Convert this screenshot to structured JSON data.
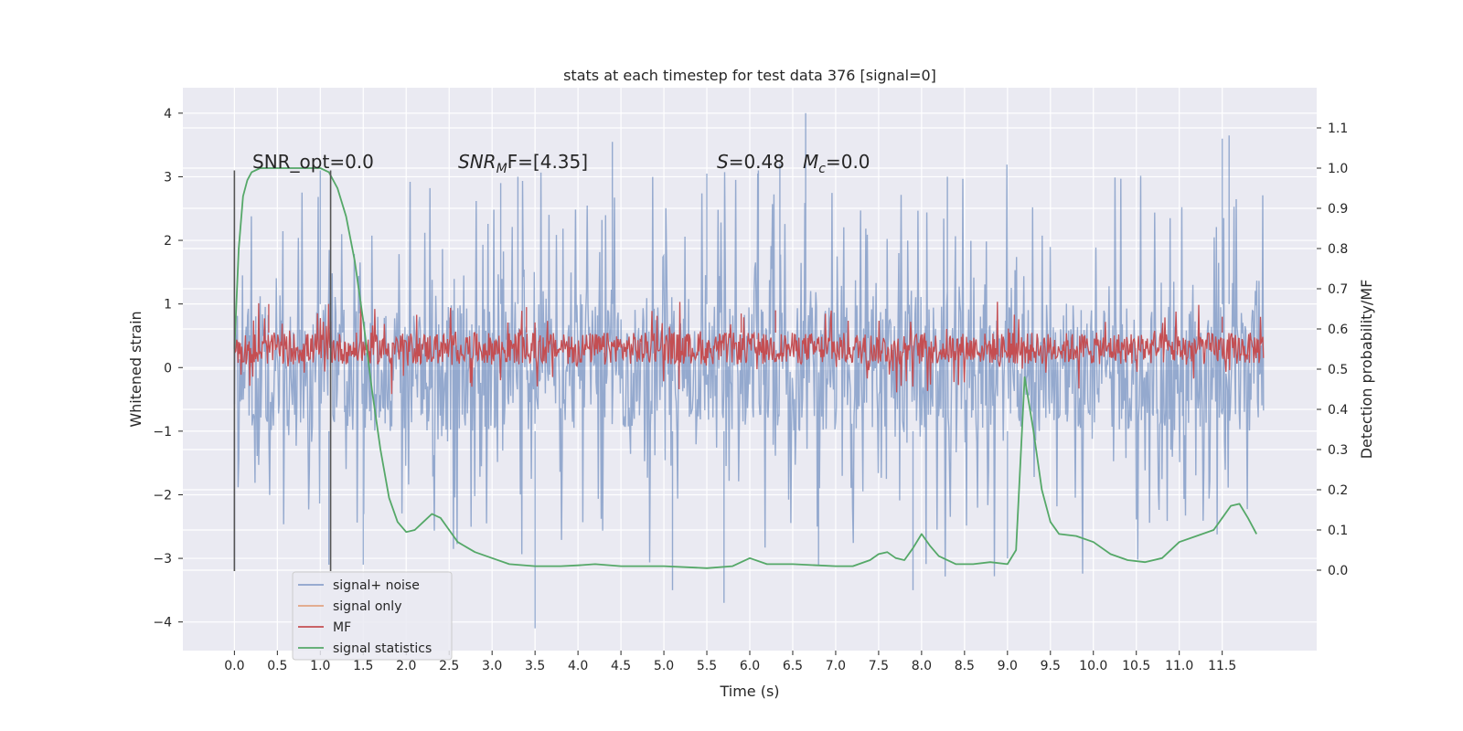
{
  "chart_data": {
    "type": "line",
    "title": "stats at each timestep for test data 376 [signal=0]",
    "xlabel": "Time (s)",
    "ylabel_left": "Whitened strain",
    "ylabel_right": "Detection probability/MF",
    "xlim": [
      -0.6,
      12.6
    ],
    "ylim_left": [
      -4.45,
      4.4
    ],
    "ylim_right": [
      -0.2,
      1.2
    ],
    "x_ticks": [
      "0.0",
      "0.5",
      "1.0",
      "1.5",
      "2.0",
      "2.5",
      "3.0",
      "3.5",
      "4.0",
      "4.5",
      "5.0",
      "5.5",
      "6.0",
      "6.5",
      "7.0",
      "7.5",
      "8.0",
      "8.5",
      "9.0",
      "9.5",
      "10.0",
      "10.5",
      "11.0",
      "11.5"
    ],
    "y_left_ticks": [
      "4",
      "3",
      "2",
      "1",
      "0",
      "−1",
      "−2",
      "−3",
      "−4"
    ],
    "y_right_ticks": [
      "1.1",
      "1.0",
      "0.9",
      "0.8",
      "0.7",
      "0.6",
      "0.5",
      "0.4",
      "0.3",
      "0.2",
      "0.1",
      "0.0"
    ],
    "grid": true,
    "legend_position": "lower-left",
    "annotations": {
      "snr_opt": "SNR_opt=0.0",
      "snr_mf_sym": "SNR",
      "snr_mf_sub": "M",
      "snr_mf_rest": "F=[4.35]",
      "s_sym": "S",
      "s_val": "=0.48",
      "mc_sym": "M",
      "mc_sub": "c",
      "mc_val": "=0.0"
    },
    "vlines": [
      0.0,
      1.12
    ],
    "series": [
      {
        "name": "signal+ noise",
        "color": "#4c72b0",
        "axis": "left",
        "x_range": [
          0.0,
          11.98
        ],
        "band": [
          -1.0,
          1.0
        ],
        "spikes_up": [
          [
            1.0,
            3.1
          ],
          [
            3.1,
            2.9
          ],
          [
            3.3,
            3.0
          ],
          [
            4.4,
            3.55
          ],
          [
            5.5,
            3.05
          ],
          [
            6.1,
            3.1
          ],
          [
            6.35,
            3.2
          ],
          [
            6.65,
            4.0
          ],
          [
            8.3,
            3.0
          ],
          [
            11.5,
            3.6
          ],
          [
            11.58,
            3.65
          ]
        ],
        "spikes_down": [
          [
            0.0,
            -3.2
          ],
          [
            1.1,
            -3.1
          ],
          [
            1.5,
            -3.1
          ],
          [
            3.5,
            -4.1
          ],
          [
            5.1,
            -3.5
          ],
          [
            5.7,
            -3.7
          ],
          [
            6.8,
            -3.1
          ],
          [
            7.9,
            -3.5
          ],
          [
            9.0,
            -3.0
          ]
        ]
      },
      {
        "name": "signal only",
        "color": "#dd8452",
        "axis": "left",
        "values": []
      },
      {
        "name": "MF",
        "color": "#c44e52",
        "axis": "left",
        "x_range": [
          0.0,
          11.98
        ],
        "band": [
          0.05,
          0.55
        ],
        "spikes_up": [
          [
            0.4,
            1.0
          ],
          [
            3.4,
            0.95
          ],
          [
            6.3,
            0.9
          ],
          [
            5.9,
            0.85
          ],
          [
            11.5,
            0.8
          ]
        ]
      },
      {
        "name": "signal statistics",
        "color": "#55a868",
        "axis": "right",
        "x": [
          0.0,
          0.05,
          0.1,
          0.15,
          0.2,
          0.3,
          0.5,
          0.7,
          0.9,
          1.0,
          1.1,
          1.2,
          1.3,
          1.4,
          1.5,
          1.6,
          1.7,
          1.8,
          1.9,
          2.0,
          2.1,
          2.2,
          2.3,
          2.4,
          2.5,
          2.6,
          2.8,
          3.0,
          3.2,
          3.5,
          3.8,
          4.0,
          4.2,
          4.5,
          5.0,
          5.5,
          5.8,
          6.0,
          6.2,
          6.5,
          7.0,
          7.2,
          7.4,
          7.5,
          7.6,
          7.7,
          7.8,
          7.9,
          8.0,
          8.1,
          8.2,
          8.4,
          8.6,
          8.8,
          9.0,
          9.1,
          9.2,
          9.3,
          9.4,
          9.5,
          9.6,
          9.8,
          10.0,
          10.2,
          10.4,
          10.6,
          10.8,
          11.0,
          11.2,
          11.4,
          11.5,
          11.6,
          11.7,
          11.8,
          11.9
        ],
        "y": [
          0.55,
          0.8,
          0.93,
          0.97,
          0.99,
          1.0,
          1.0,
          1.0,
          1.0,
          1.0,
          0.99,
          0.95,
          0.88,
          0.77,
          0.62,
          0.45,
          0.3,
          0.18,
          0.12,
          0.095,
          0.1,
          0.12,
          0.14,
          0.13,
          0.1,
          0.07,
          0.045,
          0.03,
          0.015,
          0.01,
          0.01,
          0.012,
          0.015,
          0.01,
          0.01,
          0.005,
          0.01,
          0.03,
          0.015,
          0.015,
          0.01,
          0.01,
          0.025,
          0.04,
          0.045,
          0.03,
          0.025,
          0.055,
          0.09,
          0.06,
          0.035,
          0.015,
          0.015,
          0.02,
          0.015,
          0.05,
          0.48,
          0.35,
          0.2,
          0.12,
          0.09,
          0.085,
          0.07,
          0.04,
          0.025,
          0.02,
          0.03,
          0.07,
          0.085,
          0.1,
          0.13,
          0.16,
          0.165,
          0.13,
          0.09
        ]
      }
    ]
  }
}
